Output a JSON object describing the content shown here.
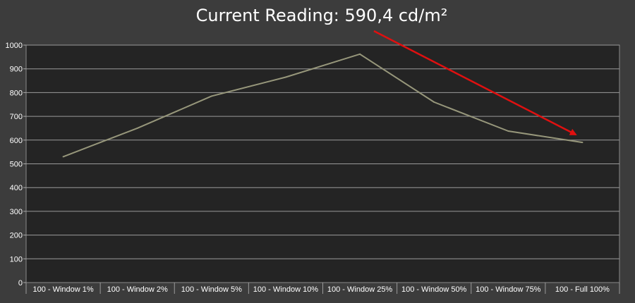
{
  "chart_data": {
    "type": "line",
    "title": "Current Reading: 590,4 cd/m²",
    "xlabel": "",
    "ylabel": "",
    "categories": [
      "100 - Window  1%",
      "100 - Window  2%",
      "100 - Window  5%",
      "100 - Window 10%",
      "100 - Window 25%",
      "100 - Window 50%",
      "100 - Window 75%",
      "100 - Full  100%"
    ],
    "series": [
      {
        "values": [
          530,
          650,
          785,
          865,
          962,
          760,
          638,
          590
        ],
        "color": "#97977b"
      }
    ],
    "ylim": [
      0,
      1000
    ],
    "yticks": [
      0,
      100,
      200,
      300,
      400,
      500,
      600,
      700,
      800,
      900,
      1000
    ],
    "grid": true,
    "legend": "none",
    "annotation": {
      "type": "arrow",
      "color": "#e01010",
      "target_category": "100 - Full  100%"
    },
    "colors": {
      "background": "#3c3c3c",
      "plot_background": "#242424",
      "grid": "#9a9a9a",
      "text": "#ffffff"
    }
  }
}
